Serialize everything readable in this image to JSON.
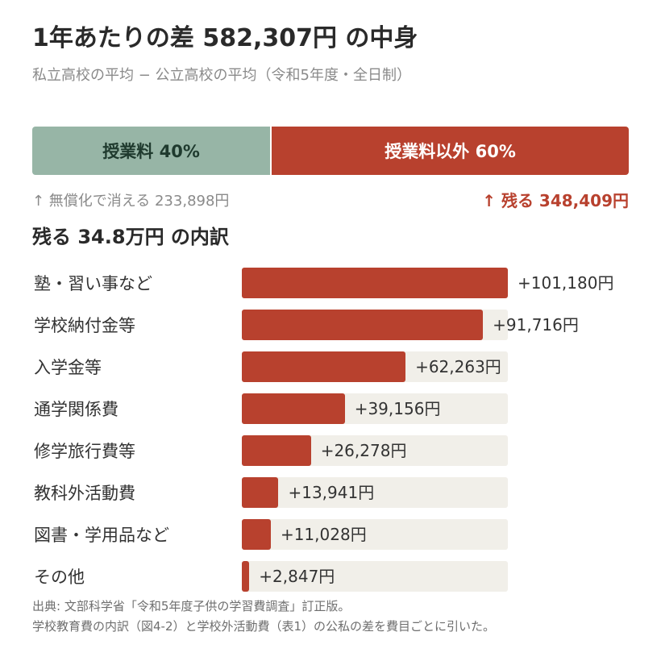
{
  "title": "1年あたりの差 582,307円 の中身",
  "subtitle": "私立高校の平均 − 公立高校の平均（令和5年度・全日制）",
  "split": {
    "tuition_label": "授業料 40%",
    "tuition_share": 40,
    "other_label": "授業料以外 60%",
    "other_share": 60,
    "note_left": "↑ 無償化で消える 233,898円",
    "note_right": "↑ 残る 348,409円"
  },
  "breakdown_title": "残る 34.8万円 の内訳",
  "chart_data": {
    "type": "bar",
    "orientation": "horizontal",
    "categories": [
      "塾・習い事など",
      "学校納付金等",
      "入学金等",
      "通学関係費",
      "修学旅行費等",
      "教科外活動費",
      "図書・学用品など",
      "その他"
    ],
    "values": [
      101180,
      91716,
      62263,
      39156,
      26278,
      13941,
      11028,
      2847
    ],
    "value_labels": [
      "+101,180円",
      "+91,716円",
      "+62,263円",
      "+39,156円",
      "+26,278円",
      "+13,941円",
      "+11,028円",
      "+2,847円"
    ],
    "xlim": [
      0,
      101180
    ]
  },
  "source": {
    "line1": "出典: 文部科学省「令和5年度子供の学習費調査」訂正版。",
    "line2": "学校教育費の内訳（図4-2）と学校外活動費（表1）の公私の差を費目ごとに引いた。"
  },
  "colors": {
    "accent_red": "#b8412e",
    "tuition_green": "#97b5a6",
    "track_gray": "#f1efe9"
  }
}
